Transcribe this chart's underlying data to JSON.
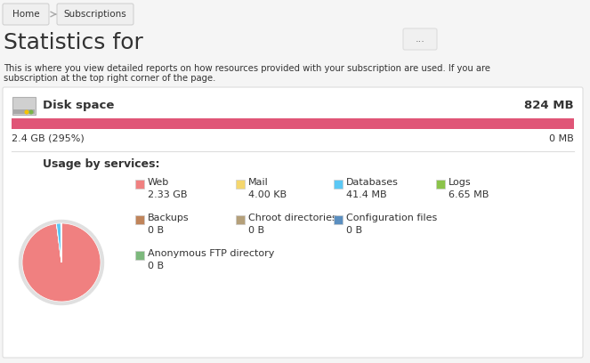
{
  "bg_color": "#f5f5f5",
  "panel_bg": "#ffffff",
  "breadcrumb": [
    "Home",
    "Subscriptions"
  ],
  "title": "Statistics for",
  "menu_dots": "...",
  "desc_line1": "This is where you view detailed reports on how resources provided with your subscription are used. If you are",
  "desc_line2": "subscription at the top right corner of the page.",
  "disk_label": "Disk space",
  "disk_limit": "824 MB",
  "disk_used": "2.4 GB (295%)",
  "disk_free": "0 MB",
  "bar_color": "#e05577",
  "bar_bg": "#e8e8e8",
  "section_label": "Usage by services:",
  "pie_slices": [
    2330,
    0.004,
    41.4,
    6.65,
    0.0001,
    0.0001,
    0.0001,
    0.0001
  ],
  "pie_colors": [
    "#f08080",
    "#f5d76e",
    "#5bc8f5",
    "#8bc34a",
    "#c0845a",
    "#b5a07a",
    "#5b8fc0",
    "#7cb87c"
  ],
  "legend_items": [
    {
      "label": "Web",
      "value": "2.33 GB",
      "color": "#f08080"
    },
    {
      "label": "Mail",
      "value": "4.00 KB",
      "color": "#f5d76e"
    },
    {
      "label": "Databases",
      "value": "41.4 MB",
      "color": "#5bc8f5"
    },
    {
      "label": "Logs",
      "value": "6.65 MB",
      "color": "#8bc34a"
    },
    {
      "label": "Backups",
      "value": "0 B",
      "color": "#c0845a"
    },
    {
      "label": "Chroot directories",
      "value": "0 B",
      "color": "#b5a07a"
    },
    {
      "label": "Configuration files",
      "value": "0 B",
      "color": "#5b8fc0"
    },
    {
      "label": "Anonymous FTP directory",
      "value": "0 B",
      "color": "#7cb87c"
    }
  ],
  "text_color": "#333333",
  "border_color": "#dddddd",
  "breadcrumb_bg": "#efefef",
  "breadcrumb_border": "#cccccc"
}
